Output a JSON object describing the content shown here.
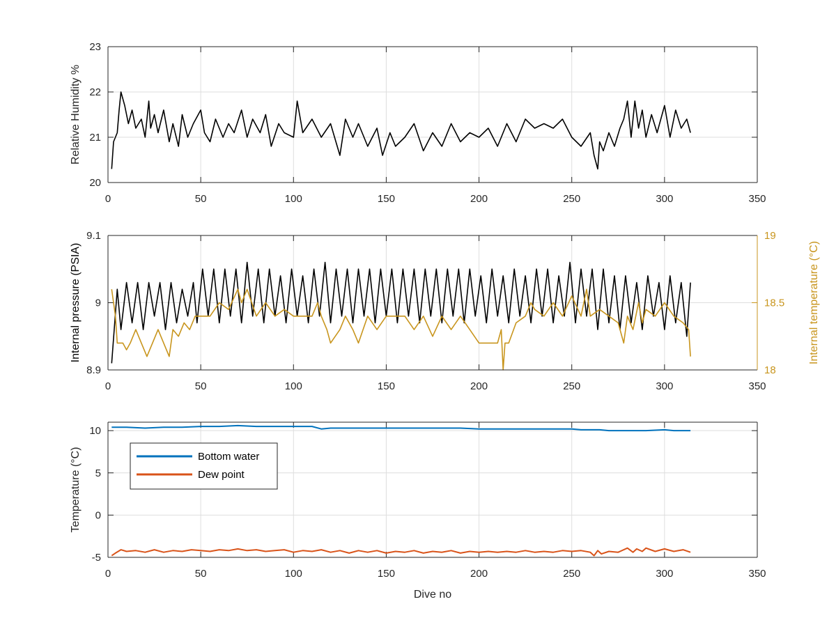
{
  "chart_data": [
    {
      "type": "line",
      "ylabel": "Relative Humidity %",
      "xlim": [
        0,
        350
      ],
      "ylim": [
        20,
        23
      ],
      "x_ticks": [
        "0",
        "50",
        "100",
        "150",
        "200",
        "250",
        "300",
        "350"
      ],
      "y_ticks": [
        "20",
        "21",
        "22",
        "23"
      ],
      "grid": true,
      "series": [
        {
          "color": "#000000",
          "x": [
            2,
            3,
            5,
            6,
            7,
            9,
            11,
            13,
            15,
            18,
            20,
            22,
            23,
            25,
            27,
            30,
            33,
            35,
            38,
            40,
            43,
            46,
            50,
            52,
            55,
            58,
            62,
            65,
            68,
            72,
            75,
            78,
            82,
            85,
            88,
            92,
            95,
            100,
            102,
            105,
            110,
            115,
            120,
            125,
            128,
            132,
            135,
            140,
            145,
            148,
            152,
            155,
            160,
            165,
            170,
            175,
            180,
            185,
            190,
            195,
            200,
            205,
            210,
            215,
            220,
            225,
            230,
            235,
            240,
            245,
            250,
            255,
            260,
            262,
            264,
            265,
            267,
            270,
            273,
            276,
            278,
            280,
            282,
            284,
            286,
            288,
            290,
            293,
            296,
            300,
            303,
            306,
            309,
            312,
            314
          ],
          "values": [
            20.3,
            20.9,
            21.1,
            21.6,
            22.0,
            21.7,
            21.3,
            21.6,
            21.2,
            21.4,
            21.0,
            21.8,
            21.2,
            21.5,
            21.1,
            21.6,
            20.9,
            21.3,
            20.8,
            21.5,
            21.0,
            21.3,
            21.6,
            21.1,
            20.9,
            21.4,
            21.0,
            21.3,
            21.1,
            21.6,
            21.0,
            21.4,
            21.1,
            21.5,
            20.8,
            21.3,
            21.1,
            21.0,
            21.8,
            21.1,
            21.4,
            21.0,
            21.3,
            20.6,
            21.4,
            21.0,
            21.3,
            20.8,
            21.2,
            20.6,
            21.1,
            20.8,
            21.0,
            21.3,
            20.7,
            21.1,
            20.8,
            21.3,
            20.9,
            21.1,
            21.0,
            21.2,
            20.8,
            21.3,
            20.9,
            21.4,
            21.2,
            21.3,
            21.2,
            21.4,
            21.0,
            20.8,
            21.1,
            20.6,
            20.3,
            20.9,
            20.7,
            21.1,
            20.8,
            21.2,
            21.4,
            21.8,
            21.0,
            21.8,
            21.2,
            21.6,
            21.0,
            21.5,
            21.1,
            21.7,
            21.0,
            21.6,
            21.2,
            21.4,
            21.1
          ]
        }
      ]
    },
    {
      "type": "line",
      "ylabel": "Internal pressure (PSIA)",
      "ylabel_right": "Internal temperature (°C)",
      "xlim": [
        0,
        350
      ],
      "ylim": [
        8.9,
        9.1
      ],
      "ylim_right": [
        18,
        19
      ],
      "x_ticks": [
        "0",
        "50",
        "100",
        "150",
        "200",
        "250",
        "300",
        "350"
      ],
      "y_ticks": [
        "8.9",
        "9",
        "9.1"
      ],
      "y_ticks_right": [
        "18",
        "18.5",
        "19"
      ],
      "grid": true,
      "series": [
        {
          "color": "#000000",
          "axis": "left",
          "x": [
            2,
            5,
            7,
            10,
            13,
            16,
            19,
            22,
            25,
            28,
            31,
            34,
            37,
            40,
            43,
            46,
            48,
            51,
            54,
            57,
            60,
            63,
            66,
            69,
            72,
            75,
            78,
            81,
            84,
            87,
            90,
            93,
            96,
            99,
            102,
            105,
            108,
            111,
            114,
            117,
            120,
            123,
            126,
            129,
            132,
            135,
            138,
            141,
            144,
            147,
            150,
            153,
            156,
            159,
            162,
            165,
            168,
            171,
            174,
            177,
            180,
            183,
            186,
            189,
            192,
            195,
            198,
            201,
            204,
            207,
            210,
            213,
            216,
            219,
            222,
            225,
            228,
            231,
            234,
            237,
            240,
            243,
            246,
            249,
            252,
            255,
            258,
            261,
            264,
            267,
            270,
            273,
            276,
            279,
            282,
            285,
            288,
            291,
            294,
            297,
            300,
            303,
            306,
            309,
            312,
            314
          ],
          "values": [
            8.91,
            9.02,
            8.96,
            9.03,
            8.97,
            9.03,
            8.96,
            9.03,
            8.98,
            9.03,
            8.96,
            9.03,
            8.97,
            9.02,
            8.98,
            9.03,
            8.97,
            9.05,
            8.98,
            9.05,
            8.97,
            9.05,
            8.98,
            9.05,
            8.97,
            9.06,
            8.98,
            9.05,
            8.97,
            9.05,
            8.98,
            9.04,
            8.97,
            9.05,
            8.98,
            9.04,
            8.97,
            9.05,
            8.98,
            9.06,
            8.97,
            9.05,
            8.98,
            9.05,
            8.97,
            9.05,
            8.98,
            9.05,
            8.97,
            9.05,
            8.98,
            9.05,
            8.97,
            9.05,
            8.98,
            9.05,
            8.97,
            9.05,
            8.98,
            9.05,
            8.97,
            9.05,
            8.98,
            9.05,
            8.97,
            9.05,
            8.98,
            9.04,
            8.97,
            9.05,
            8.98,
            9.04,
            8.97,
            9.05,
            8.98,
            9.04,
            8.97,
            9.05,
            8.98,
            9.05,
            8.97,
            9.04,
            8.98,
            9.06,
            8.97,
            9.05,
            8.98,
            9.05,
            8.96,
            9.05,
            8.97,
            9.04,
            8.96,
            9.04,
            8.97,
            9.03,
            8.96,
            9.04,
            8.98,
            9.03,
            8.96,
            9.04,
            8.97,
            9.03,
            8.95,
            9.03
          ]
        },
        {
          "color": "#c8951d",
          "axis": "right",
          "x": [
            2,
            4,
            5,
            8,
            10,
            12,
            15,
            18,
            21,
            24,
            27,
            30,
            33,
            35,
            38,
            41,
            44,
            47,
            50,
            55,
            60,
            65,
            70,
            72,
            75,
            80,
            85,
            90,
            95,
            100,
            105,
            110,
            113,
            115,
            118,
            120,
            125,
            128,
            132,
            135,
            140,
            145,
            150,
            155,
            160,
            165,
            170,
            175,
            180,
            185,
            190,
            195,
            200,
            205,
            210,
            212,
            213,
            214,
            216,
            220,
            225,
            228,
            230,
            235,
            240,
            245,
            250,
            255,
            258,
            260,
            265,
            270,
            275,
            278,
            280,
            283,
            286,
            288,
            290,
            295,
            300,
            305,
            310,
            313,
            314
          ],
          "values": [
            18.6,
            18.4,
            18.2,
            18.2,
            18.15,
            18.2,
            18.3,
            18.2,
            18.1,
            18.2,
            18.3,
            18.2,
            18.1,
            18.3,
            18.25,
            18.35,
            18.3,
            18.4,
            18.4,
            18.4,
            18.5,
            18.45,
            18.6,
            18.5,
            18.6,
            18.4,
            18.5,
            18.4,
            18.45,
            18.4,
            18.4,
            18.4,
            18.5,
            18.4,
            18.3,
            18.2,
            18.3,
            18.4,
            18.3,
            18.2,
            18.4,
            18.3,
            18.4,
            18.4,
            18.4,
            18.3,
            18.4,
            18.25,
            18.4,
            18.3,
            18.4,
            18.3,
            18.2,
            18.2,
            18.2,
            18.3,
            18.0,
            18.2,
            18.2,
            18.35,
            18.4,
            18.5,
            18.45,
            18.4,
            18.5,
            18.4,
            18.55,
            18.4,
            18.6,
            18.4,
            18.45,
            18.4,
            18.35,
            18.2,
            18.4,
            18.3,
            18.5,
            18.35,
            18.45,
            18.4,
            18.5,
            18.4,
            18.35,
            18.3,
            18.1
          ]
        }
      ]
    },
    {
      "type": "line",
      "xlabel": "Dive no",
      "ylabel": "Temperature (°C)",
      "xlim": [
        0,
        350
      ],
      "ylim": [
        -5,
        11
      ],
      "x_ticks": [
        "0",
        "50",
        "100",
        "150",
        "200",
        "250",
        "300",
        "350"
      ],
      "y_ticks": [
        "-5",
        "0",
        "5",
        "10"
      ],
      "grid": true,
      "legend": "top-left",
      "series": [
        {
          "name": "Bottom water",
          "color": "#0072bd",
          "x": [
            2,
            10,
            20,
            30,
            40,
            50,
            60,
            70,
            80,
            90,
            100,
            105,
            110,
            115,
            120,
            130,
            140,
            150,
            160,
            170,
            180,
            190,
            200,
            210,
            220,
            230,
            240,
            250,
            255,
            260,
            265,
            270,
            280,
            290,
            300,
            305,
            310,
            314
          ],
          "values": [
            10.4,
            10.4,
            10.3,
            10.4,
            10.4,
            10.5,
            10.5,
            10.6,
            10.5,
            10.5,
            10.5,
            10.5,
            10.5,
            10.2,
            10.3,
            10.3,
            10.3,
            10.3,
            10.3,
            10.3,
            10.3,
            10.3,
            10.2,
            10.2,
            10.2,
            10.2,
            10.2,
            10.2,
            10.1,
            10.1,
            10.1,
            10.0,
            10.0,
            10.0,
            10.1,
            10.0,
            10.0,
            10.0
          ]
        },
        {
          "name": "Dew point",
          "color": "#d95319",
          "x": [
            2,
            4,
            7,
            10,
            15,
            20,
            25,
            30,
            35,
            40,
            45,
            50,
            55,
            60,
            65,
            70,
            75,
            80,
            85,
            90,
            95,
            100,
            105,
            110,
            115,
            120,
            125,
            130,
            135,
            140,
            145,
            150,
            155,
            160,
            165,
            170,
            175,
            180,
            185,
            190,
            195,
            200,
            205,
            210,
            215,
            220,
            225,
            230,
            235,
            240,
            245,
            250,
            255,
            260,
            262,
            264,
            266,
            270,
            275,
            280,
            283,
            285,
            288,
            290,
            295,
            300,
            305,
            310,
            314
          ],
          "values": [
            -4.8,
            -4.5,
            -4.1,
            -4.3,
            -4.2,
            -4.4,
            -4.1,
            -4.4,
            -4.2,
            -4.3,
            -4.1,
            -4.2,
            -4.3,
            -4.1,
            -4.2,
            -4.0,
            -4.2,
            -4.1,
            -4.3,
            -4.2,
            -4.1,
            -4.4,
            -4.2,
            -4.3,
            -4.1,
            -4.4,
            -4.2,
            -4.5,
            -4.2,
            -4.4,
            -4.2,
            -4.5,
            -4.3,
            -4.4,
            -4.2,
            -4.5,
            -4.3,
            -4.4,
            -4.2,
            -4.5,
            -4.3,
            -4.4,
            -4.3,
            -4.4,
            -4.3,
            -4.4,
            -4.2,
            -4.4,
            -4.3,
            -4.4,
            -4.2,
            -4.3,
            -4.2,
            -4.4,
            -4.8,
            -4.2,
            -4.6,
            -4.3,
            -4.4,
            -3.9,
            -4.4,
            -4.0,
            -4.3,
            -3.9,
            -4.3,
            -4.0,
            -4.3,
            -4.1,
            -4.4
          ]
        }
      ]
    }
  ]
}
